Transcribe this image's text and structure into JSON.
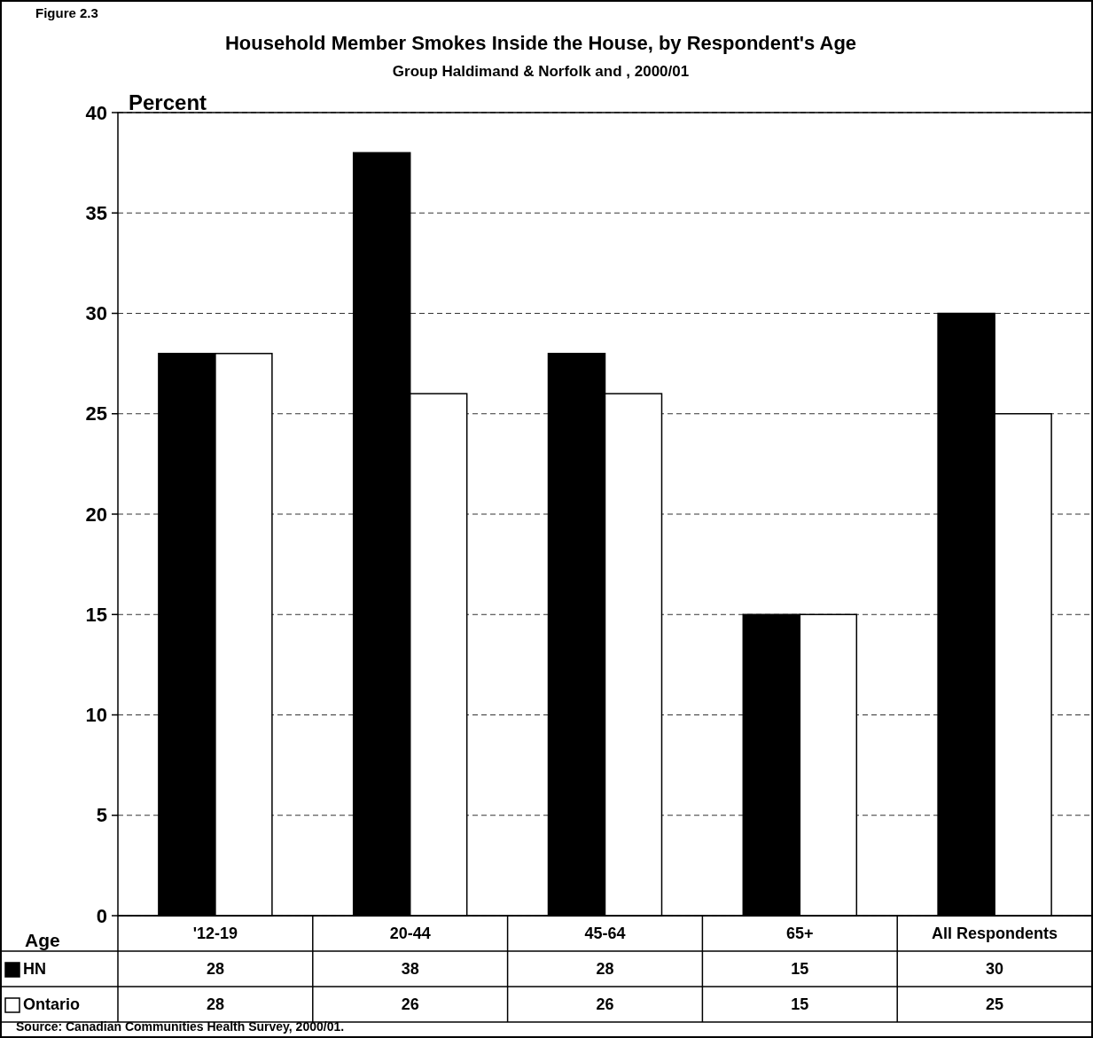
{
  "chart_data": {
    "type": "bar",
    "title": "Household Member Smokes Inside the House, by Respondent's Age",
    "subtitle": "Group Haldimand & Norfolk and , 2000/01",
    "ylabel": "Percent",
    "xlabel": "Age",
    "annotations": [
      "Figure 2.3",
      "Source: Canadian Communities Health Survey, 2000/01."
    ],
    "categories": [
      "'12-19",
      "20-44",
      "45-64",
      "65+",
      "All Respondents"
    ],
    "series": [
      {
        "name": "HN",
        "color": "#000000",
        "values": [
          28,
          38,
          28,
          15,
          30
        ]
      },
      {
        "name": "Ontario",
        "color": "#ffffff",
        "values": [
          28,
          26,
          26,
          15,
          25
        ]
      }
    ],
    "ylim": [
      0,
      40
    ],
    "yticks": [
      0,
      5,
      10,
      15,
      20,
      25,
      30,
      35,
      40
    ],
    "grid": "y",
    "legend": "bottom",
    "data_labels": true
  }
}
